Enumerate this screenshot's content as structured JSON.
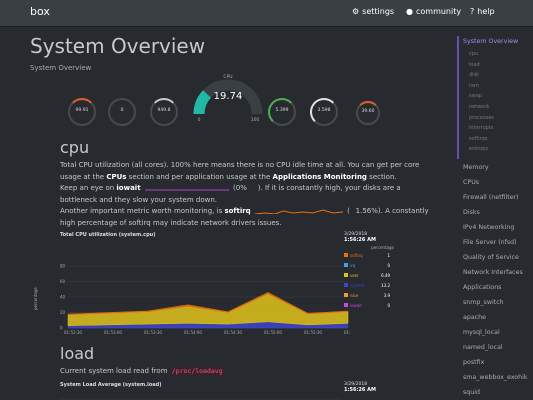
{
  "brand": "box",
  "nav": {
    "settings": "settings",
    "community": "community",
    "help": "help"
  },
  "page": {
    "title": "System Overview",
    "subtitle": "System Overview"
  },
  "gauges": {
    "g1": "99.91",
    "g2": "0",
    "g3": "949.8",
    "main_label": "CPU",
    "main_value": "19.74",
    "main_min": "0",
    "main_max": "100",
    "g5": "5.399",
    "g6": "3.598",
    "g7": "39.60"
  },
  "cpu": {
    "heading": "cpu",
    "p1a": "Total CPU utilization (all cores). 100% here means there is no CPU idle time at all. You can get per core usage at the ",
    "p1_cpus": "CPUs",
    "p1b": " section and per application usage at the ",
    "p1_apps": "Applications Monitoring",
    "p1c": " section.",
    "p2a": "Keep an eye on ",
    "p2_iowait": "iowait",
    "p2_paren_open": " (",
    "p2_iowait_val": "0%",
    "p2b": "). If it is constantly high, your disks are a bottleneck and they slow your system down.",
    "p3a": "Another important metric worth monitoring, is ",
    "p3_softirq": "softirq",
    "p3_paren_open": " (",
    "p3_softirq_val": "1.56%",
    "p3b": "). A constantly high percentage of softirq may indicate network drivers issues.",
    "chart_title": "Total CPU utilization (system.cpu)",
    "date": "3/29/2018",
    "time": "1:56:26 AM",
    "legend_title": "percentage",
    "legend": [
      {
        "name": "softirq",
        "value": "1",
        "color": "#e8710a"
      },
      {
        "name": "irq",
        "value": "0",
        "color": "#4c9dd8"
      },
      {
        "name": "user",
        "value": "6.49",
        "color": "#e0c31b"
      },
      {
        "name": "system",
        "value": "13.2",
        "color": "#3e45cc"
      },
      {
        "name": "nice",
        "value": "3.9",
        "color": "#e8a22c"
      },
      {
        "name": "iowait",
        "value": "0",
        "color": "#c94bd8"
      }
    ],
    "ylabel": "percentage"
  },
  "load": {
    "heading": "load",
    "text": "Current system load read from ",
    "path": "/proc/loadavg",
    "chart_title": "System Load Average (system.load)",
    "date": "3/29/2018",
    "time": "1:56:26 AM"
  },
  "sidenav": {
    "active": "System Overview",
    "subs": [
      "cpu",
      "load",
      "disk",
      "ram",
      "swap",
      "network",
      "processes",
      "interrupts",
      "softirqs",
      "entropy"
    ],
    "items": [
      "Memory",
      "CPUs",
      "Firewall (netfilter)",
      "Disks",
      "IPv4 Networking",
      "File Server (nfsd)",
      "Quality of Service",
      "Network Interfaces",
      "Applications",
      "snmp_switch",
      "apache",
      "mysql_local",
      "named_local",
      "postfix",
      "sma_webbox_exohik",
      "squid"
    ]
  },
  "chart_data": {
    "type": "area",
    "title": "Total CPU utilization (system.cpu)",
    "ylabel": "percentage",
    "ylim": [
      0,
      80
    ],
    "yticks": [
      0,
      20,
      40,
      60,
      80
    ],
    "x": [
      "01:52:30",
      "01:53:00",
      "01:53:30",
      "01:54:00",
      "01:54:30",
      "01:55:00",
      "01:55:30",
      "01:56:00"
    ],
    "series": [
      {
        "name": "system",
        "color": "#3e45cc",
        "values": [
          3,
          4,
          5,
          6,
          5,
          8,
          4,
          6
        ]
      },
      {
        "name": "user",
        "color": "#e0c31b",
        "values": [
          14,
          15,
          16,
          22,
          15,
          36,
          14,
          15
        ]
      },
      {
        "name": "softirq",
        "color": "#e8710a",
        "values": [
          1,
          1,
          1,
          2,
          1,
          2,
          1,
          1
        ]
      }
    ]
  }
}
